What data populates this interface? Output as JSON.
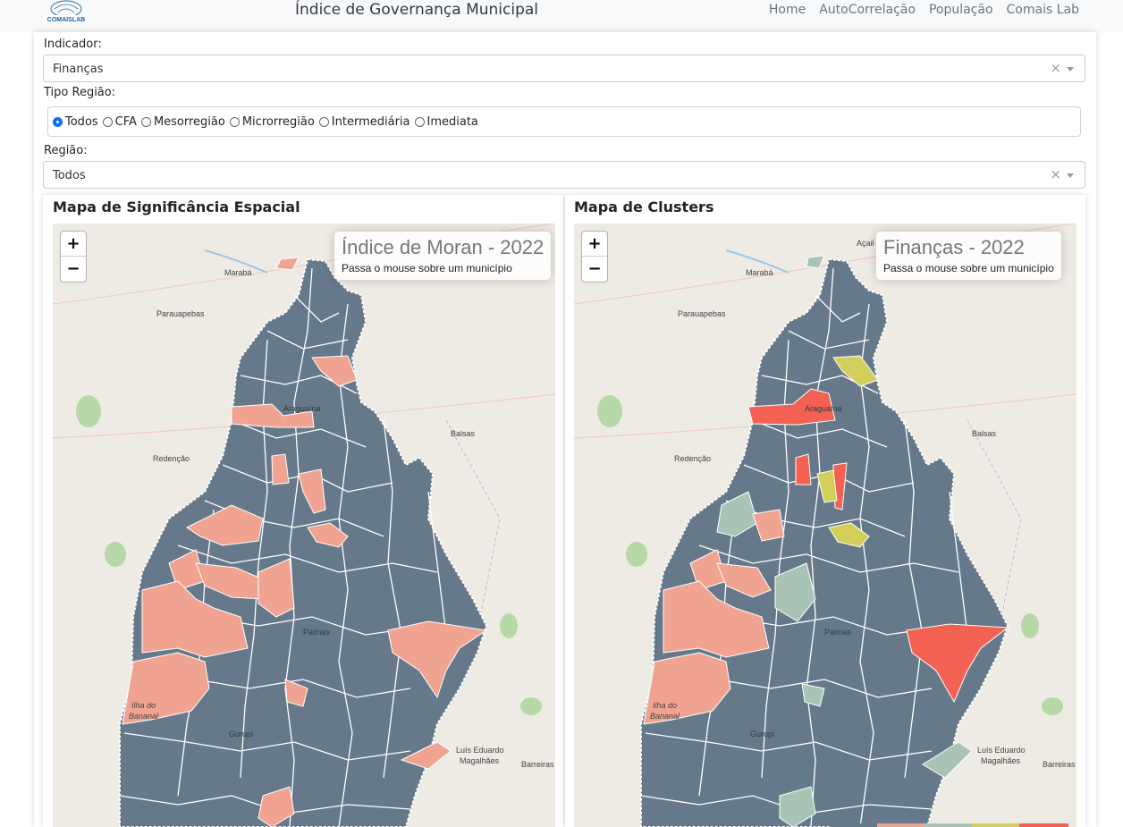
{
  "nav": {
    "logo_text": "COMAISLAB",
    "title": "Índice de Governança Municipal",
    "links": [
      "Home",
      "AutoCorrelação",
      "População",
      "Comais Lab"
    ]
  },
  "form": {
    "indicador_label": "Indicador:",
    "indicador_value": "Finanças",
    "tipo_regiao_label": "Tipo Região:",
    "tipo_regiao_options": [
      "Todos",
      "CFA",
      "Mesorregião",
      "Microrregião",
      "Intermediária",
      "Imediata"
    ],
    "tipo_regiao_selected": "Todos",
    "regiao_label": "Região:",
    "regiao_value": "Todos",
    "clear_glyph": "×"
  },
  "maps": {
    "left": {
      "title": "Mapa de Significância Espacial",
      "info_title": "Índice de Moran - 2022",
      "info_sub": "Passa o mouse sobre um município"
    },
    "right": {
      "title": "Mapa de Clusters",
      "info_title": "Finanças - 2022",
      "info_sub": "Passa o mouse sobre um município"
    },
    "zoom_in": "+",
    "zoom_out": "−",
    "cities": {
      "maraba": "Marabá",
      "parauapebas": "Parauapebas",
      "redencao": "Redenção",
      "balsas": "Balsas",
      "araguaina": "Araguaína",
      "palmas": "Palmas",
      "ilha1": "Ilha do",
      "ilha2": "Bananal",
      "gurupi": "Gurupi",
      "luis1": "Luís Eduardo",
      "luis2": "Magalhães",
      "barreiras": "Barreiras",
      "acailandia": "Açail"
    }
  },
  "colors": {
    "base": "#66798a",
    "significant": "#f0a391",
    "high_high": "#f26152",
    "low_high": "#d4cf5a",
    "low_low": "#a9c4b6",
    "map_bg": "#eeebe5",
    "green_area": "#b7d8a7",
    "river": "#9fc6e0"
  }
}
